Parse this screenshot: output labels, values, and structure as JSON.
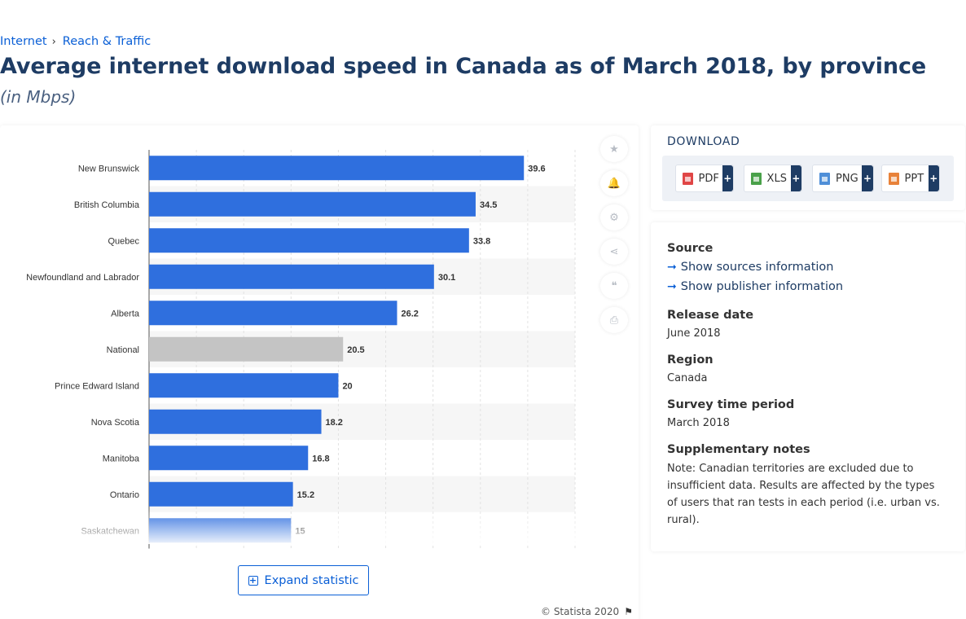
{
  "breadcrumb": {
    "items": [
      "Internet",
      "Reach & Traffic"
    ],
    "separator": "›"
  },
  "page": {
    "title": "Average internet download speed in Canada as of March 2018, by province",
    "subtitle": "(in Mbps)"
  },
  "chart_data": {
    "type": "bar",
    "orientation": "horizontal",
    "categories": [
      "New Brunswick",
      "British Columbia",
      "Quebec",
      "Newfoundland and Labrador",
      "Alberta",
      "National",
      "Prince Edward Island",
      "Nova Scotia",
      "Manitoba",
      "Ontario",
      "Saskatchewan"
    ],
    "values": [
      39.6,
      34.5,
      33.8,
      30.1,
      26.2,
      20.5,
      20,
      18.2,
      16.8,
      15.2,
      15
    ],
    "value_labels": [
      "39.6",
      "34.5",
      "33.8",
      "30.1",
      "26.2",
      "20.5",
      "20",
      "18.2",
      "16.8",
      "15.2",
      "15"
    ],
    "highlight_category": "National",
    "xlim": [
      0,
      45
    ],
    "grid": true,
    "colors": {
      "bar": "#2f6fde",
      "highlight": "#c4c4c4",
      "stripe": "#f6f6f6",
      "grid": "#e2e2e2"
    }
  },
  "side_toolbar": {
    "icons": [
      "star-icon",
      "bell-icon",
      "gear-icon",
      "share-icon",
      "quote-icon",
      "print-icon"
    ],
    "glyphs": [
      "★",
      "🔔",
      "⚙",
      "⋖",
      "❝",
      "⎙"
    ]
  },
  "expand": {
    "label": "Expand statistic",
    "icon": "+"
  },
  "copyright": {
    "text": "© Statista 2020",
    "icon": "flag-icon"
  },
  "download": {
    "title": "DOWNLOAD",
    "buttons": [
      {
        "label": "PDF",
        "color": "#e04646"
      },
      {
        "label": "XLS",
        "color": "#4aa14a"
      },
      {
        "label": "PNG",
        "color": "#4f8fd8"
      },
      {
        "label": "PPT",
        "color": "#e8823a"
      }
    ],
    "plus": "+"
  },
  "info": {
    "source_label": "Source",
    "show_sources": "Show sources information",
    "show_publisher": "Show publisher information",
    "arrow": "➞",
    "release_label": "Release date",
    "release_value": "June 2018",
    "region_label": "Region",
    "region_value": "Canada",
    "survey_label": "Survey time period",
    "survey_value": "March 2018",
    "notes_label": "Supplementary notes",
    "notes_value": "Note: Canadian territories are excluded due to insufficient data. Results are affected by the types of users that ran tests in each period (i.e. urban vs. rural)."
  }
}
